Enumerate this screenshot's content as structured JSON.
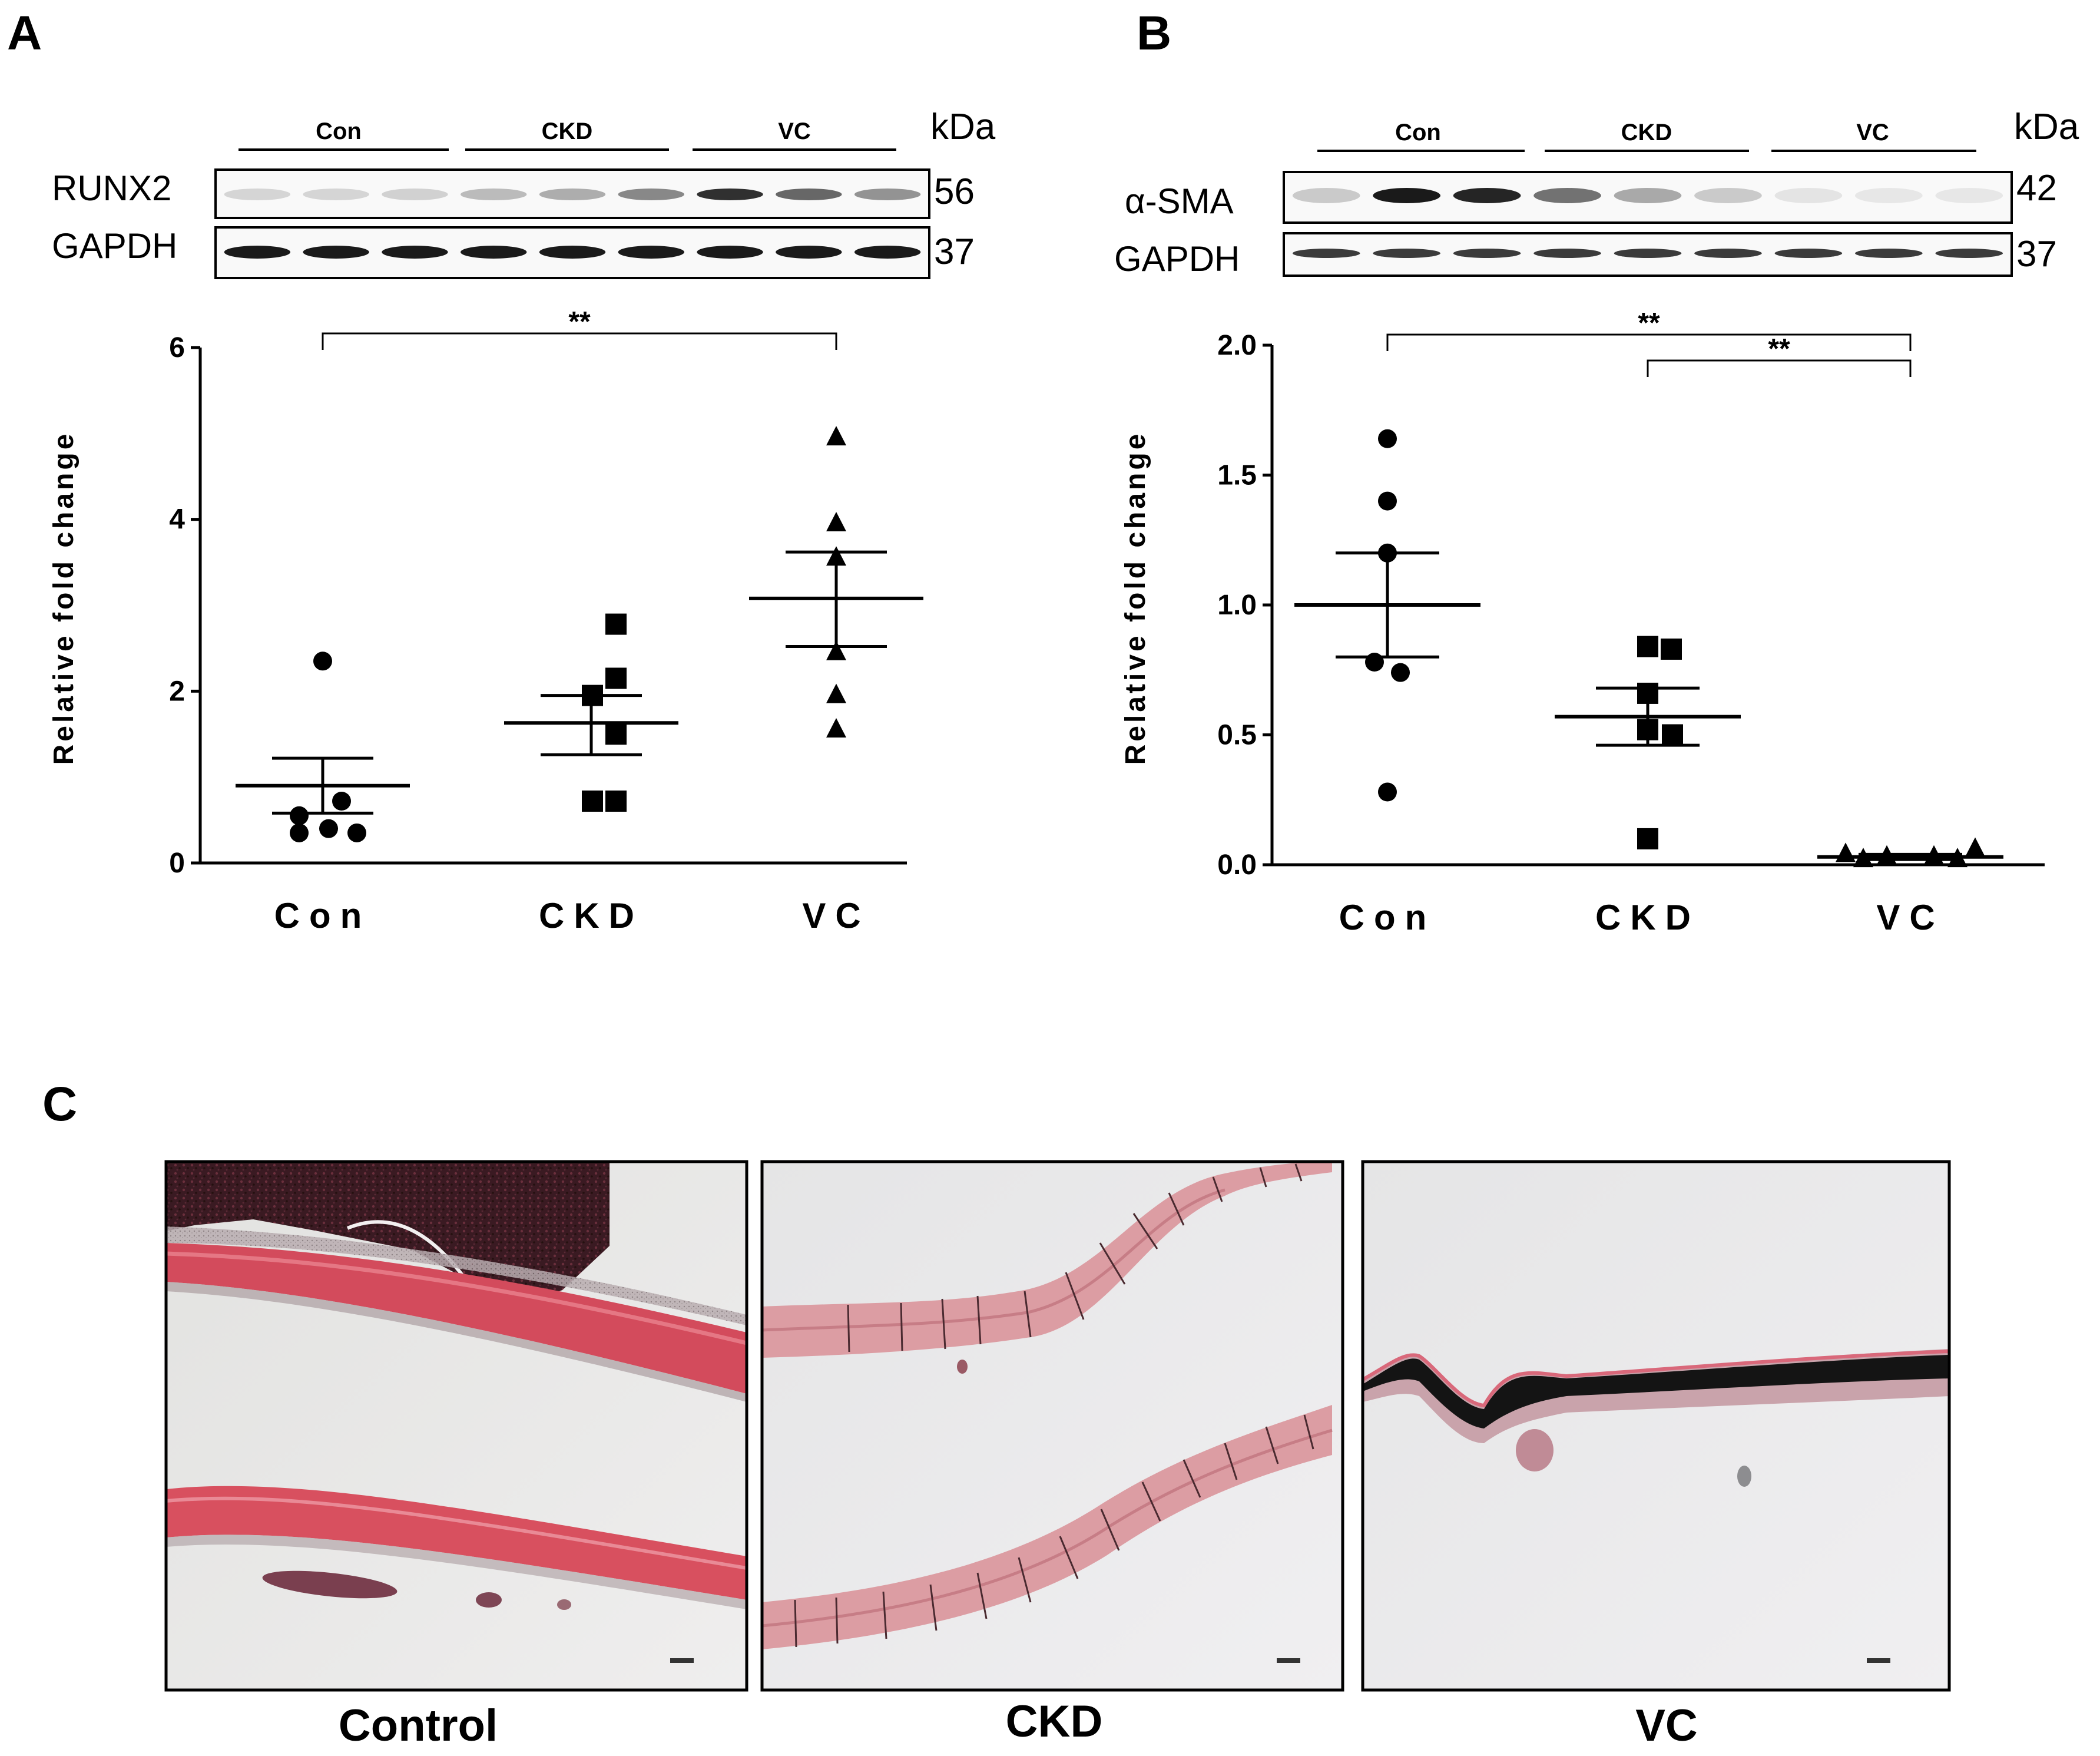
{
  "panels": {
    "A": {
      "letter": "A",
      "blot": {
        "groups": [
          "Con",
          "CKD",
          "VC"
        ],
        "kda_label": "kDa",
        "proteins": [
          {
            "name": "RUNX2",
            "kda": "56",
            "intensities": [
              0.1,
              0.1,
              0.12,
              0.22,
              0.28,
              0.45,
              0.85,
              0.6,
              0.4
            ]
          },
          {
            "name": "GAPDH",
            "kda": "37",
            "intensities": [
              0.95,
              0.95,
              0.95,
              0.95,
              0.95,
              0.95,
              0.95,
              0.95,
              0.95
            ]
          }
        ]
      },
      "significance": [
        {
          "from": "Con",
          "to": "VC",
          "label": "**"
        }
      ]
    },
    "B": {
      "letter": "B",
      "blot": {
        "groups": [
          "Con",
          "CKD",
          "VC"
        ],
        "kda_label": "kDa",
        "proteins": [
          {
            "name": "α-SMA",
            "kda": "42",
            "intensities": [
              0.15,
              0.95,
              0.9,
              0.55,
              0.3,
              0.15,
              0.03,
              0.02,
              0.02
            ]
          },
          {
            "name": "GAPDH",
            "kda": "37",
            "intensities": [
              0.8,
              0.8,
              0.8,
              0.8,
              0.8,
              0.8,
              0.8,
              0.8,
              0.8
            ]
          }
        ]
      },
      "significance": [
        {
          "from": "Con",
          "to": "VC",
          "label": "**"
        },
        {
          "from": "CKD",
          "to": "VC",
          "label": "**"
        }
      ]
    },
    "C": {
      "letter": "C",
      "images": [
        {
          "label": "Control",
          "description": "histology-control"
        },
        {
          "label": "CKD",
          "description": "histology-ckd"
        },
        {
          "label": "VC",
          "description": "histology-vc"
        }
      ]
    }
  },
  "chart_data": [
    {
      "type": "scatter",
      "panel": "A",
      "title": "",
      "xlabel": "",
      "ylabel": "Relative fold change",
      "categories": [
        "Con",
        "CKD",
        "VC"
      ],
      "ylim": [
        0,
        6
      ],
      "yticks": [
        0,
        2,
        4,
        6
      ],
      "series": [
        {
          "name": "Con",
          "marker": "circle",
          "values": [
            2.35,
            0.72,
            0.55,
            0.4,
            0.35,
            0.35
          ],
          "mean": 0.9,
          "sem_upper": 1.22,
          "sem_lower": 0.58
        },
        {
          "name": "CKD",
          "marker": "square",
          "values": [
            2.78,
            2.15,
            1.95,
            1.5,
            0.72,
            0.72
          ],
          "mean": 1.63,
          "sem_upper": 1.95,
          "sem_lower": 1.26
        },
        {
          "name": "VC",
          "marker": "triangle",
          "values": [
            4.95,
            3.95,
            3.55,
            2.45,
            1.95,
            1.55
          ],
          "mean": 3.08,
          "sem_upper": 3.62,
          "sem_lower": 2.52
        }
      ]
    },
    {
      "type": "scatter",
      "panel": "B",
      "title": "",
      "xlabel": "",
      "ylabel": "Relative fold change",
      "categories": [
        "Con",
        "CKD",
        "VC"
      ],
      "ylim": [
        0,
        2.0
      ],
      "yticks": [
        "0.0",
        "0.5",
        "1.0",
        "1.5",
        "2.0"
      ],
      "series": [
        {
          "name": "Con",
          "marker": "circle",
          "values": [
            1.64,
            1.4,
            1.2,
            0.78,
            0.74,
            0.28
          ],
          "mean": 1.0,
          "sem_upper": 1.2,
          "sem_lower": 0.8
        },
        {
          "name": "CKD",
          "marker": "square",
          "values": [
            0.84,
            0.83,
            0.66,
            0.52,
            0.5,
            0.1
          ],
          "mean": 0.57,
          "sem_upper": 0.68,
          "sem_lower": 0.46
        },
        {
          "name": "VC",
          "marker": "triangle",
          "values": [
            0.06,
            0.04,
            0.03,
            0.03,
            0.02,
            0.02
          ],
          "mean": 0.03,
          "sem_upper": 0.04,
          "sem_lower": 0.02
        }
      ]
    }
  ]
}
